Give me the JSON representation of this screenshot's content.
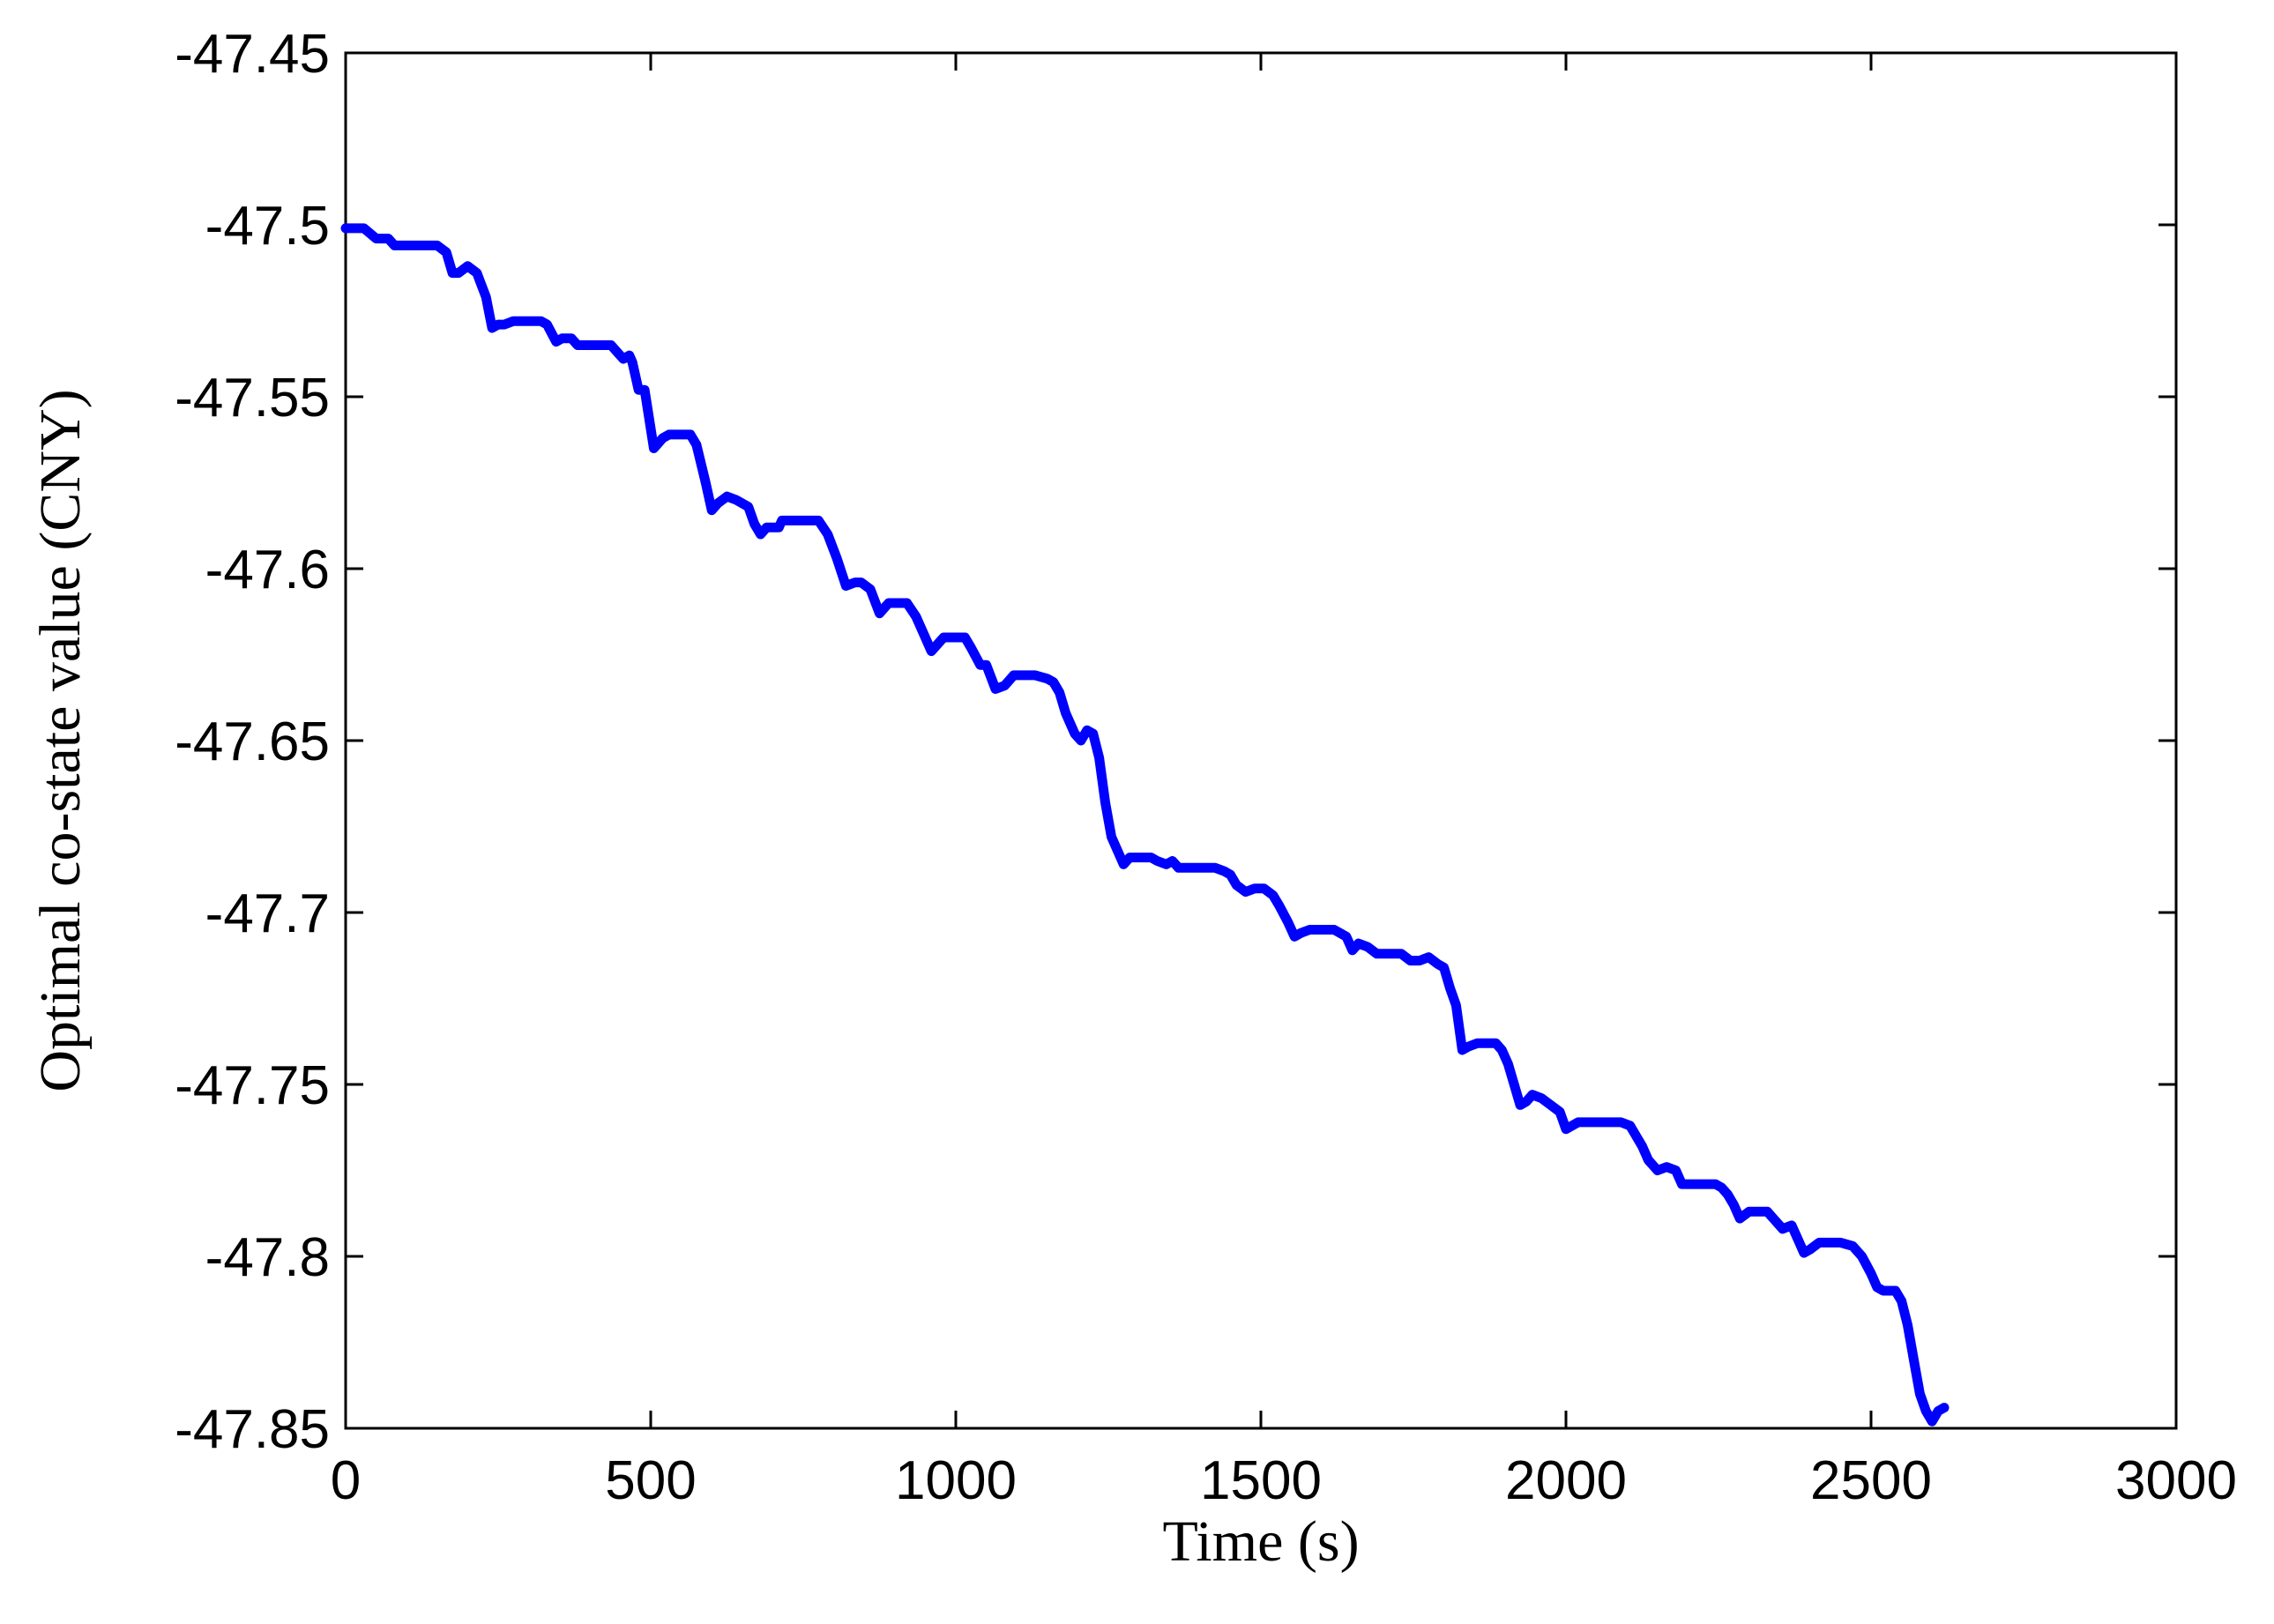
{
  "chart_data": {
    "type": "line",
    "title": "",
    "xlabel": "Time (s)",
    "ylabel": "Optimal co-state value (CNY)",
    "xlim": [
      0,
      3000
    ],
    "ylim": [
      -47.85,
      -47.45
    ],
    "xticks": [
      0,
      500,
      1000,
      1500,
      2000,
      2500,
      3000
    ],
    "xtick_labels": [
      "0",
      "500",
      "1000",
      "1500",
      "2000",
      "2500",
      "3000"
    ],
    "yticks": [
      -47.45,
      -47.5,
      -47.55,
      -47.6,
      -47.65,
      -47.7,
      -47.75,
      -47.8,
      -47.85
    ],
    "ytick_labels": [
      "-47.45",
      "-47.5",
      "-47.55",
      "-47.6",
      "-47.65",
      "-47.7",
      "-47.75",
      "-47.8",
      "-47.85"
    ],
    "grid": false,
    "series": [
      {
        "color": "#0000ff",
        "x": [
          0,
          30,
          50,
          70,
          80,
          100,
          130,
          150,
          165,
          175,
          185,
          200,
          215,
          230,
          240,
          250,
          260,
          275,
          300,
          320,
          330,
          345,
          355,
          370,
          380,
          400,
          420,
          435,
          455,
          465,
          470,
          480,
          490,
          505,
          520,
          530,
          565,
          575,
          590,
          600,
          610,
          625,
          640,
          660,
          670,
          680,
          690,
          710,
          715,
          720,
          735,
          750,
          775,
          790,
          805,
          820,
          835,
          845,
          860,
          875,
          885,
          890,
          905,
          920,
          935,
          945,
          960,
          970,
          980,
          1000,
          1015,
          1025,
          1040,
          1050,
          1065,
          1080,
          1095,
          1110,
          1130,
          1150,
          1160,
          1170,
          1180,
          1195,
          1205,
          1215,
          1225,
          1235,
          1245,
          1255,
          1265,
          1275,
          1285,
          1300,
          1320,
          1330,
          1345,
          1355,
          1365,
          1380,
          1395,
          1410,
          1425,
          1440,
          1450,
          1460,
          1475,
          1490,
          1505,
          1520,
          1530,
          1545,
          1555,
          1565,
          1580,
          1600,
          1620,
          1640,
          1650,
          1660,
          1675,
          1690,
          1710,
          1730,
          1745,
          1760,
          1775,
          1790,
          1800,
          1810,
          1820,
          1830,
          1840,
          1855,
          1875,
          1885,
          1895,
          1905,
          1915,
          1925,
          1935,
          1945,
          1960,
          1975,
          1990,
          2000,
          2010,
          2020,
          2035,
          2050,
          2070,
          2090,
          2105,
          2115,
          2125,
          2135,
          2150,
          2165,
          2180,
          2190,
          2200,
          2210,
          2225,
          2245,
          2255,
          2265,
          2275,
          2285,
          2300,
          2315,
          2330,
          2340,
          2355,
          2370,
          2380,
          2390,
          2400,
          2415,
          2430,
          2450,
          2470,
          2485,
          2500,
          2510,
          2520,
          2530,
          2540,
          2550,
          2560,
          2570,
          2580,
          2590,
          2600,
          2610,
          2620
        ],
        "y": [
          -47.501,
          -47.501,
          -47.504,
          -47.504,
          -47.506,
          -47.506,
          -47.506,
          -47.506,
          -47.508,
          -47.514,
          -47.514,
          -47.512,
          -47.514,
          -47.521,
          -47.53,
          -47.529,
          -47.529,
          -47.528,
          -47.528,
          -47.528,
          -47.529,
          -47.534,
          -47.533,
          -47.533,
          -47.535,
          -47.535,
          -47.535,
          -47.535,
          -47.539,
          -47.538,
          -47.54,
          -47.548,
          -47.548,
          -47.565,
          -47.562,
          -47.561,
          -47.561,
          -47.564,
          -47.575,
          -47.583,
          -47.581,
          -47.579,
          -47.58,
          -47.582,
          -47.587,
          -47.59,
          -47.588,
          -47.588,
          -47.586,
          -47.586,
          -47.586,
          -47.586,
          -47.586,
          -47.59,
          -47.597,
          -47.605,
          -47.604,
          -47.604,
          -47.606,
          -47.613,
          -47.611,
          -47.61,
          -47.61,
          -47.61,
          -47.614,
          -47.618,
          -47.624,
          -47.622,
          -47.62,
          -47.62,
          -47.62,
          -47.623,
          -47.628,
          -47.628,
          -47.635,
          -47.634,
          -47.631,
          -47.631,
          -47.631,
          -47.632,
          -47.633,
          -47.636,
          -47.642,
          -47.648,
          -47.65,
          -47.647,
          -47.648,
          -47.655,
          -47.668,
          -47.678,
          -47.682,
          -47.686,
          -47.684,
          -47.684,
          -47.684,
          -47.685,
          -47.686,
          -47.685,
          -47.687,
          -47.687,
          -47.687,
          -47.687,
          -47.687,
          -47.688,
          -47.689,
          -47.692,
          -47.694,
          -47.693,
          -47.693,
          -47.695,
          -47.698,
          -47.703,
          -47.707,
          -47.706,
          -47.705,
          -47.705,
          -47.705,
          -47.707,
          -47.711,
          -47.709,
          -47.71,
          -47.712,
          -47.712,
          -47.712,
          -47.714,
          -47.714,
          -47.713,
          -47.715,
          -47.716,
          -47.722,
          -47.727,
          -47.74,
          -47.739,
          -47.738,
          -47.738,
          -47.738,
          -47.74,
          -47.744,
          -47.75,
          -47.756,
          -47.755,
          -47.753,
          -47.754,
          -47.756,
          -47.758,
          -47.763,
          -47.762,
          -47.761,
          -47.761,
          -47.761,
          -47.761,
          -47.761,
          -47.762,
          -47.765,
          -47.768,
          -47.772,
          -47.775,
          -47.774,
          -47.775,
          -47.779,
          -47.779,
          -47.779,
          -47.779,
          -47.779,
          -47.78,
          -47.782,
          -47.785,
          -47.789,
          -47.787,
          -47.787,
          -47.787,
          -47.789,
          -47.792,
          -47.791,
          -47.795,
          -47.799,
          -47.798,
          -47.796,
          -47.796,
          -47.796,
          -47.797,
          -47.8,
          -47.805,
          -47.809,
          -47.81,
          -47.81,
          -47.81,
          -47.813,
          -47.82,
          -47.83,
          -47.84,
          -47.845,
          -47.848,
          -47.845,
          -47.844
        ]
      }
    ]
  }
}
